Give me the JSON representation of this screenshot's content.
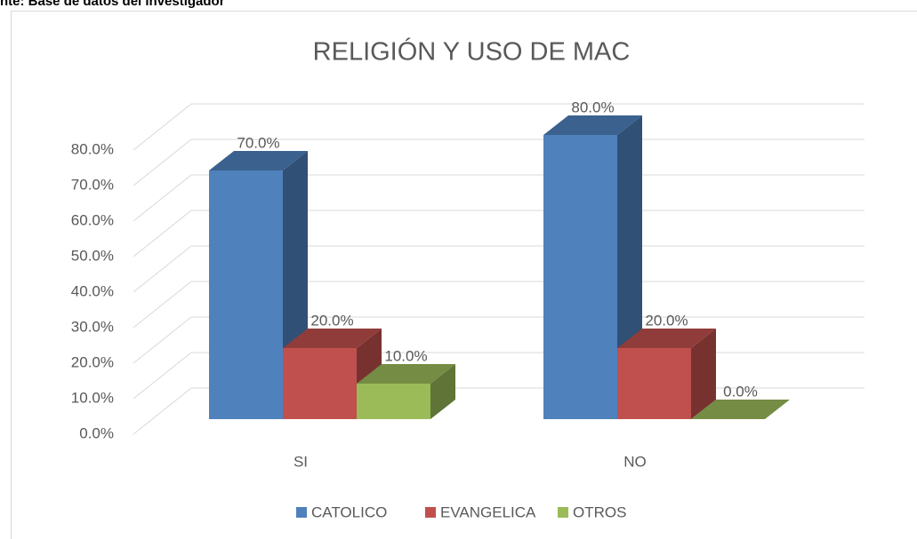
{
  "note_text": "nte: Base de datos del investigador",
  "chart_data": {
    "type": "bar3d",
    "title": "RELIGIÓN Y USO DE MAC",
    "categories": [
      "SI",
      "NO"
    ],
    "series": [
      {
        "name": "CATOLICO",
        "color": "#4f81bd",
        "values": [
          70,
          80
        ],
        "value_labels": [
          "70.0%",
          "80.0%"
        ]
      },
      {
        "name": "EVANGELICA",
        "color": "#c0504d",
        "values": [
          20,
          20
        ],
        "value_labels": [
          "20.0%",
          "20.0%"
        ]
      },
      {
        "name": "OTROS",
        "color": "#9bbb59",
        "values": [
          10,
          0
        ],
        "value_labels": [
          "10.0%",
          "0.0%"
        ]
      }
    ],
    "ylim": [
      0,
      80
    ],
    "yticks": [
      {
        "value": 0,
        "label": "0.0%"
      },
      {
        "value": 10,
        "label": "10.0%"
      },
      {
        "value": 20,
        "label": "20.0%"
      },
      {
        "value": 30,
        "label": "30.0%"
      },
      {
        "value": 40,
        "label": "40.0%"
      },
      {
        "value": 50,
        "label": "50.0%"
      },
      {
        "value": 60,
        "label": "60.0%"
      },
      {
        "value": 70,
        "label": "70.0%"
      },
      {
        "value": 80,
        "label": "80.0%"
      }
    ],
    "grid": true,
    "legend": "bottom"
  }
}
